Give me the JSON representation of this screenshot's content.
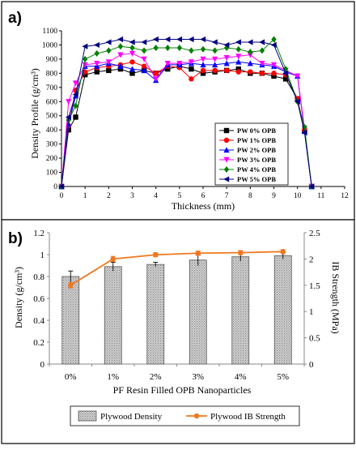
{
  "chart_data": [
    {
      "panel_label": "a)",
      "type": "line",
      "xlabel": "Thickness (mm)",
      "ylabel": "Density Profile (g/cm³)",
      "xlim": [
        0,
        12
      ],
      "ylim": [
        0,
        1100
      ],
      "x_ticks": [
        0,
        1,
        2,
        3,
        4,
        5,
        6,
        7,
        8,
        9,
        10,
        11,
        12
      ],
      "y_ticks": [
        0,
        100,
        200,
        300,
        400,
        500,
        600,
        700,
        800,
        900,
        1000,
        1100
      ],
      "grid": false,
      "legend_position": "lower-right",
      "x": [
        0,
        0.3,
        0.6,
        1,
        1.5,
        2,
        2.5,
        3,
        3.5,
        4,
        4.5,
        5,
        5.5,
        6,
        6.5,
        7,
        7.5,
        8,
        8.5,
        9,
        9.5,
        10,
        10.3,
        10.6
      ],
      "series": [
        {
          "name": "PW 0% OPB",
          "marker": "square",
          "color": "#000000",
          "values": [
            0,
            400,
            490,
            790,
            810,
            820,
            830,
            800,
            820,
            800,
            830,
            850,
            830,
            800,
            810,
            820,
            830,
            800,
            800,
            780,
            760,
            620,
            390,
            0
          ]
        },
        {
          "name": "PW 1% OPB",
          "marker": "circle",
          "color": "#ff0000",
          "values": [
            0,
            430,
            680,
            810,
            840,
            850,
            860,
            880,
            850,
            800,
            850,
            840,
            760,
            820,
            820,
            820,
            810,
            810,
            800,
            800,
            790,
            620,
            400,
            0
          ]
        },
        {
          "name": "PW 2% OPB",
          "marker": "triangle-up",
          "color": "#0000ff",
          "values": [
            0,
            440,
            640,
            850,
            850,
            870,
            850,
            830,
            820,
            750,
            860,
            860,
            870,
            860,
            860,
            870,
            880,
            870,
            860,
            850,
            810,
            780,
            390,
            0
          ]
        },
        {
          "name": "PW 3% OPB",
          "marker": "triangle-down",
          "color": "#ff00ff",
          "values": [
            0,
            600,
            730,
            860,
            870,
            880,
            930,
            940,
            900,
            760,
            870,
            870,
            880,
            900,
            900,
            910,
            920,
            930,
            870,
            860,
            820,
            780,
            410,
            0
          ]
        },
        {
          "name": "PW 4% OPB",
          "marker": "diamond",
          "color": "#008000",
          "values": [
            0,
            470,
            570,
            900,
            940,
            960,
            990,
            980,
            960,
            980,
            980,
            980,
            960,
            970,
            960,
            980,
            970,
            950,
            960,
            1040,
            830,
            600,
            420,
            0
          ]
        },
        {
          "name": "PW 5% OPB",
          "marker": "triangle-left",
          "color": "#000080",
          "values": [
            0,
            490,
            650,
            990,
            1000,
            1020,
            1040,
            1020,
            1020,
            1040,
            1040,
            1040,
            1040,
            1040,
            1020,
            1000,
            1020,
            1020,
            1020,
            1000,
            800,
            600,
            380,
            0
          ]
        }
      ]
    },
    {
      "panel_label": "b)",
      "type": "bar",
      "xlabel": "PF Resin Filled OPB Nanoparticles",
      "ylabel": "Density (g/cm³)",
      "ylabel_right": "IB Strength (MPa)",
      "ylim": [
        0,
        1.2
      ],
      "ylim_right": [
        0,
        2.5
      ],
      "y_ticks": [
        "0",
        "0.2",
        "0.4",
        "0.6",
        "0.8",
        "1",
        "1.2"
      ],
      "y_ticks_right": [
        "0",
        "0.5",
        "1",
        "1.5",
        "2",
        "2.5"
      ],
      "categories": [
        "0%",
        "1%",
        "2%",
        "3%",
        "4%",
        "5%"
      ],
      "legend_position": "bottom",
      "series": [
        {
          "name": "Plywood Density",
          "kind": "bar",
          "axis": "left",
          "color": "#b5b5b5",
          "values": [
            0.8,
            0.89,
            0.91,
            0.95,
            0.98,
            0.99
          ],
          "errors": [
            0.05,
            0.04,
            0.02,
            0.05,
            0.04,
            0.03
          ]
        },
        {
          "name": "Plywood IB Strength",
          "kind": "line",
          "axis": "right",
          "color": "#f07820",
          "values": [
            1.5,
            2.0,
            2.08,
            2.11,
            2.12,
            2.14
          ],
          "errors": [
            0.05,
            0.05,
            0.04,
            0.04,
            0.04,
            0.04
          ]
        }
      ]
    }
  ]
}
